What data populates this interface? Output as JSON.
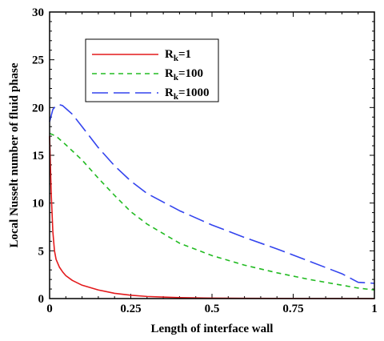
{
  "chart_data": {
    "type": "line",
    "title": "",
    "xlabel": "Length of interface wall",
    "ylabel": "Local Nusselt number of fluid phase",
    "xlim": [
      0,
      1
    ],
    "ylim": [
      0,
      30
    ],
    "xticks": [
      "0",
      "0.25",
      "0.5",
      "0.75",
      "1"
    ],
    "yticks": [
      "0",
      "5",
      "10",
      "15",
      "20",
      "25",
      "30"
    ],
    "legend": {
      "placement": "top-left",
      "entries": [
        {
          "base": "R",
          "sub": "k",
          "rest": "=1"
        },
        {
          "base": "R",
          "sub": "k",
          "rest": "=100"
        },
        {
          "base": "R",
          "sub": "k",
          "rest": "=1000"
        }
      ]
    },
    "series": [
      {
        "name": "Rk=1",
        "color": "#e31a1c",
        "dash": "solid",
        "x": [
          0.0,
          0.005,
          0.01,
          0.015,
          0.02,
          0.03,
          0.04,
          0.05,
          0.07,
          0.1,
          0.15,
          0.2,
          0.25,
          0.3,
          0.4,
          0.5,
          0.6,
          0.7,
          0.8,
          0.9,
          1.0
        ],
        "y": [
          17.0,
          11.0,
          7.0,
          5.0,
          4.1,
          3.3,
          2.8,
          2.4,
          1.9,
          1.4,
          0.9,
          0.55,
          0.35,
          0.22,
          0.1,
          0.05,
          0.03,
          0.02,
          0.01,
          0.01,
          0.0
        ]
      },
      {
        "name": "Rk=100",
        "color": "#22bb22",
        "dash": "short",
        "x": [
          0.0,
          0.02,
          0.05,
          0.1,
          0.15,
          0.2,
          0.25,
          0.3,
          0.4,
          0.5,
          0.6,
          0.7,
          0.8,
          0.9,
          0.95,
          1.0
        ],
        "y": [
          17.3,
          17.0,
          16.1,
          14.5,
          12.6,
          10.8,
          9.1,
          7.8,
          5.8,
          4.5,
          3.5,
          2.7,
          2.0,
          1.4,
          1.1,
          0.9
        ]
      },
      {
        "name": "Rk=1000",
        "color": "#3344ee",
        "dash": "long",
        "x": [
          0.0,
          0.01,
          0.02,
          0.03,
          0.04,
          0.05,
          0.07,
          0.1,
          0.15,
          0.2,
          0.25,
          0.3,
          0.4,
          0.5,
          0.6,
          0.7,
          0.8,
          0.9,
          0.95,
          1.0
        ],
        "y": [
          18.5,
          19.8,
          20.2,
          20.3,
          20.2,
          19.9,
          19.3,
          18.0,
          15.8,
          13.9,
          12.3,
          11.0,
          9.2,
          7.7,
          6.4,
          5.2,
          3.9,
          2.6,
          1.7,
          1.6
        ]
      }
    ]
  }
}
